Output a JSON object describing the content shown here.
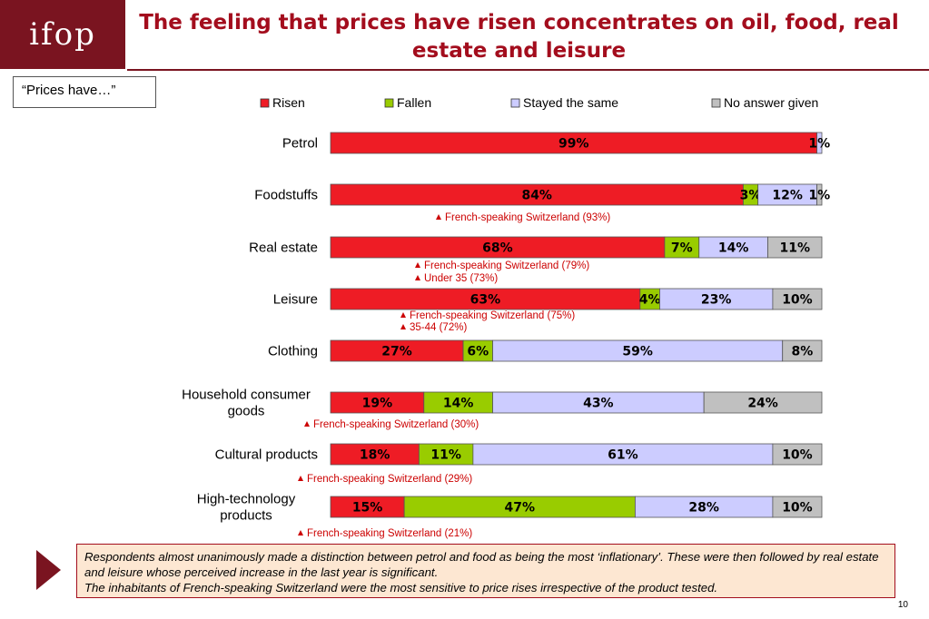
{
  "logo": "ifop",
  "title": "The feeling that prices have risen concentrates on oil, food, real estate and leisure",
  "question_label": "“Prices have…”",
  "colors": {
    "risen": "#ee1c25",
    "fallen": "#99cc00",
    "same": "#ccccff",
    "no_answer": "#c0c0c0",
    "note": "#cc0000",
    "brand": "#7a1420"
  },
  "chart_data": {
    "type": "bar",
    "orientation": "horizontal",
    "stacked": true,
    "unit": "%",
    "categories": [
      "Petrol",
      "Foodstuffs",
      "Real estate",
      "Leisure",
      "Clothing",
      "Household consumer goods",
      "Cultural products",
      "High-technology products"
    ],
    "series": [
      {
        "name": "Risen",
        "key": "risen",
        "values": [
          99,
          84,
          68,
          63,
          27,
          19,
          18,
          15
        ]
      },
      {
        "name": "Fallen",
        "key": "fallen",
        "values": [
          0,
          3,
          7,
          4,
          6,
          14,
          11,
          47
        ]
      },
      {
        "name": "Stayed the same",
        "key": "same",
        "values": [
          1,
          12,
          14,
          23,
          59,
          43,
          61,
          28
        ]
      },
      {
        "name": "No answer given",
        "key": "no_answer",
        "values": [
          0,
          1,
          11,
          10,
          8,
          24,
          10,
          10
        ]
      }
    ],
    "data_labels": [
      [
        "99%",
        "",
        "1%",
        ""
      ],
      [
        "84%",
        "3%",
        "12%",
        "1%"
      ],
      [
        "68%",
        "7%",
        "14%",
        "11%"
      ],
      [
        "63%",
        "4%",
        "23%",
        "10%"
      ],
      [
        "27%",
        "6%",
        "59%",
        "8%"
      ],
      [
        "19%",
        "14%",
        "43%",
        "24%"
      ],
      [
        "18%",
        "11%",
        "61%",
        "10%"
      ],
      [
        "15%",
        "47%",
        "28%",
        "10%"
      ]
    ],
    "legend_position": "top",
    "xlim": [
      0,
      100
    ],
    "grid": false,
    "annotations": [
      {
        "category": "Foodstuffs",
        "lines": [
          "French-speaking Switzerland (93%)"
        ]
      },
      {
        "category": "Real estate",
        "lines": [
          "French-speaking Switzerland (79%)",
          "Under 35 (73%)"
        ]
      },
      {
        "category": "Leisure",
        "lines": [
          "French-speaking Switzerland (75%)",
          "35-44  (72%)"
        ]
      },
      {
        "category": "Household consumer goods",
        "lines": [
          "French-speaking Switzerland (30%)"
        ]
      },
      {
        "category": "Cultural products",
        "lines": [
          "French-speaking Switzerland (29%)"
        ]
      },
      {
        "category": "High-technology products",
        "lines": [
          "French-speaking Switzerland (21%)"
        ]
      }
    ]
  },
  "summary": {
    "line1": "Respondents almost unanimously made a distinction between petrol and food as being the most ‘inflationary’. These were then followed by real estate and leisure whose perceived increase in the last year is significant.",
    "line2": "The inhabitants of French-speaking Switzerland were the most sensitive to price rises irrespective of the product tested."
  },
  "page_number": "10"
}
